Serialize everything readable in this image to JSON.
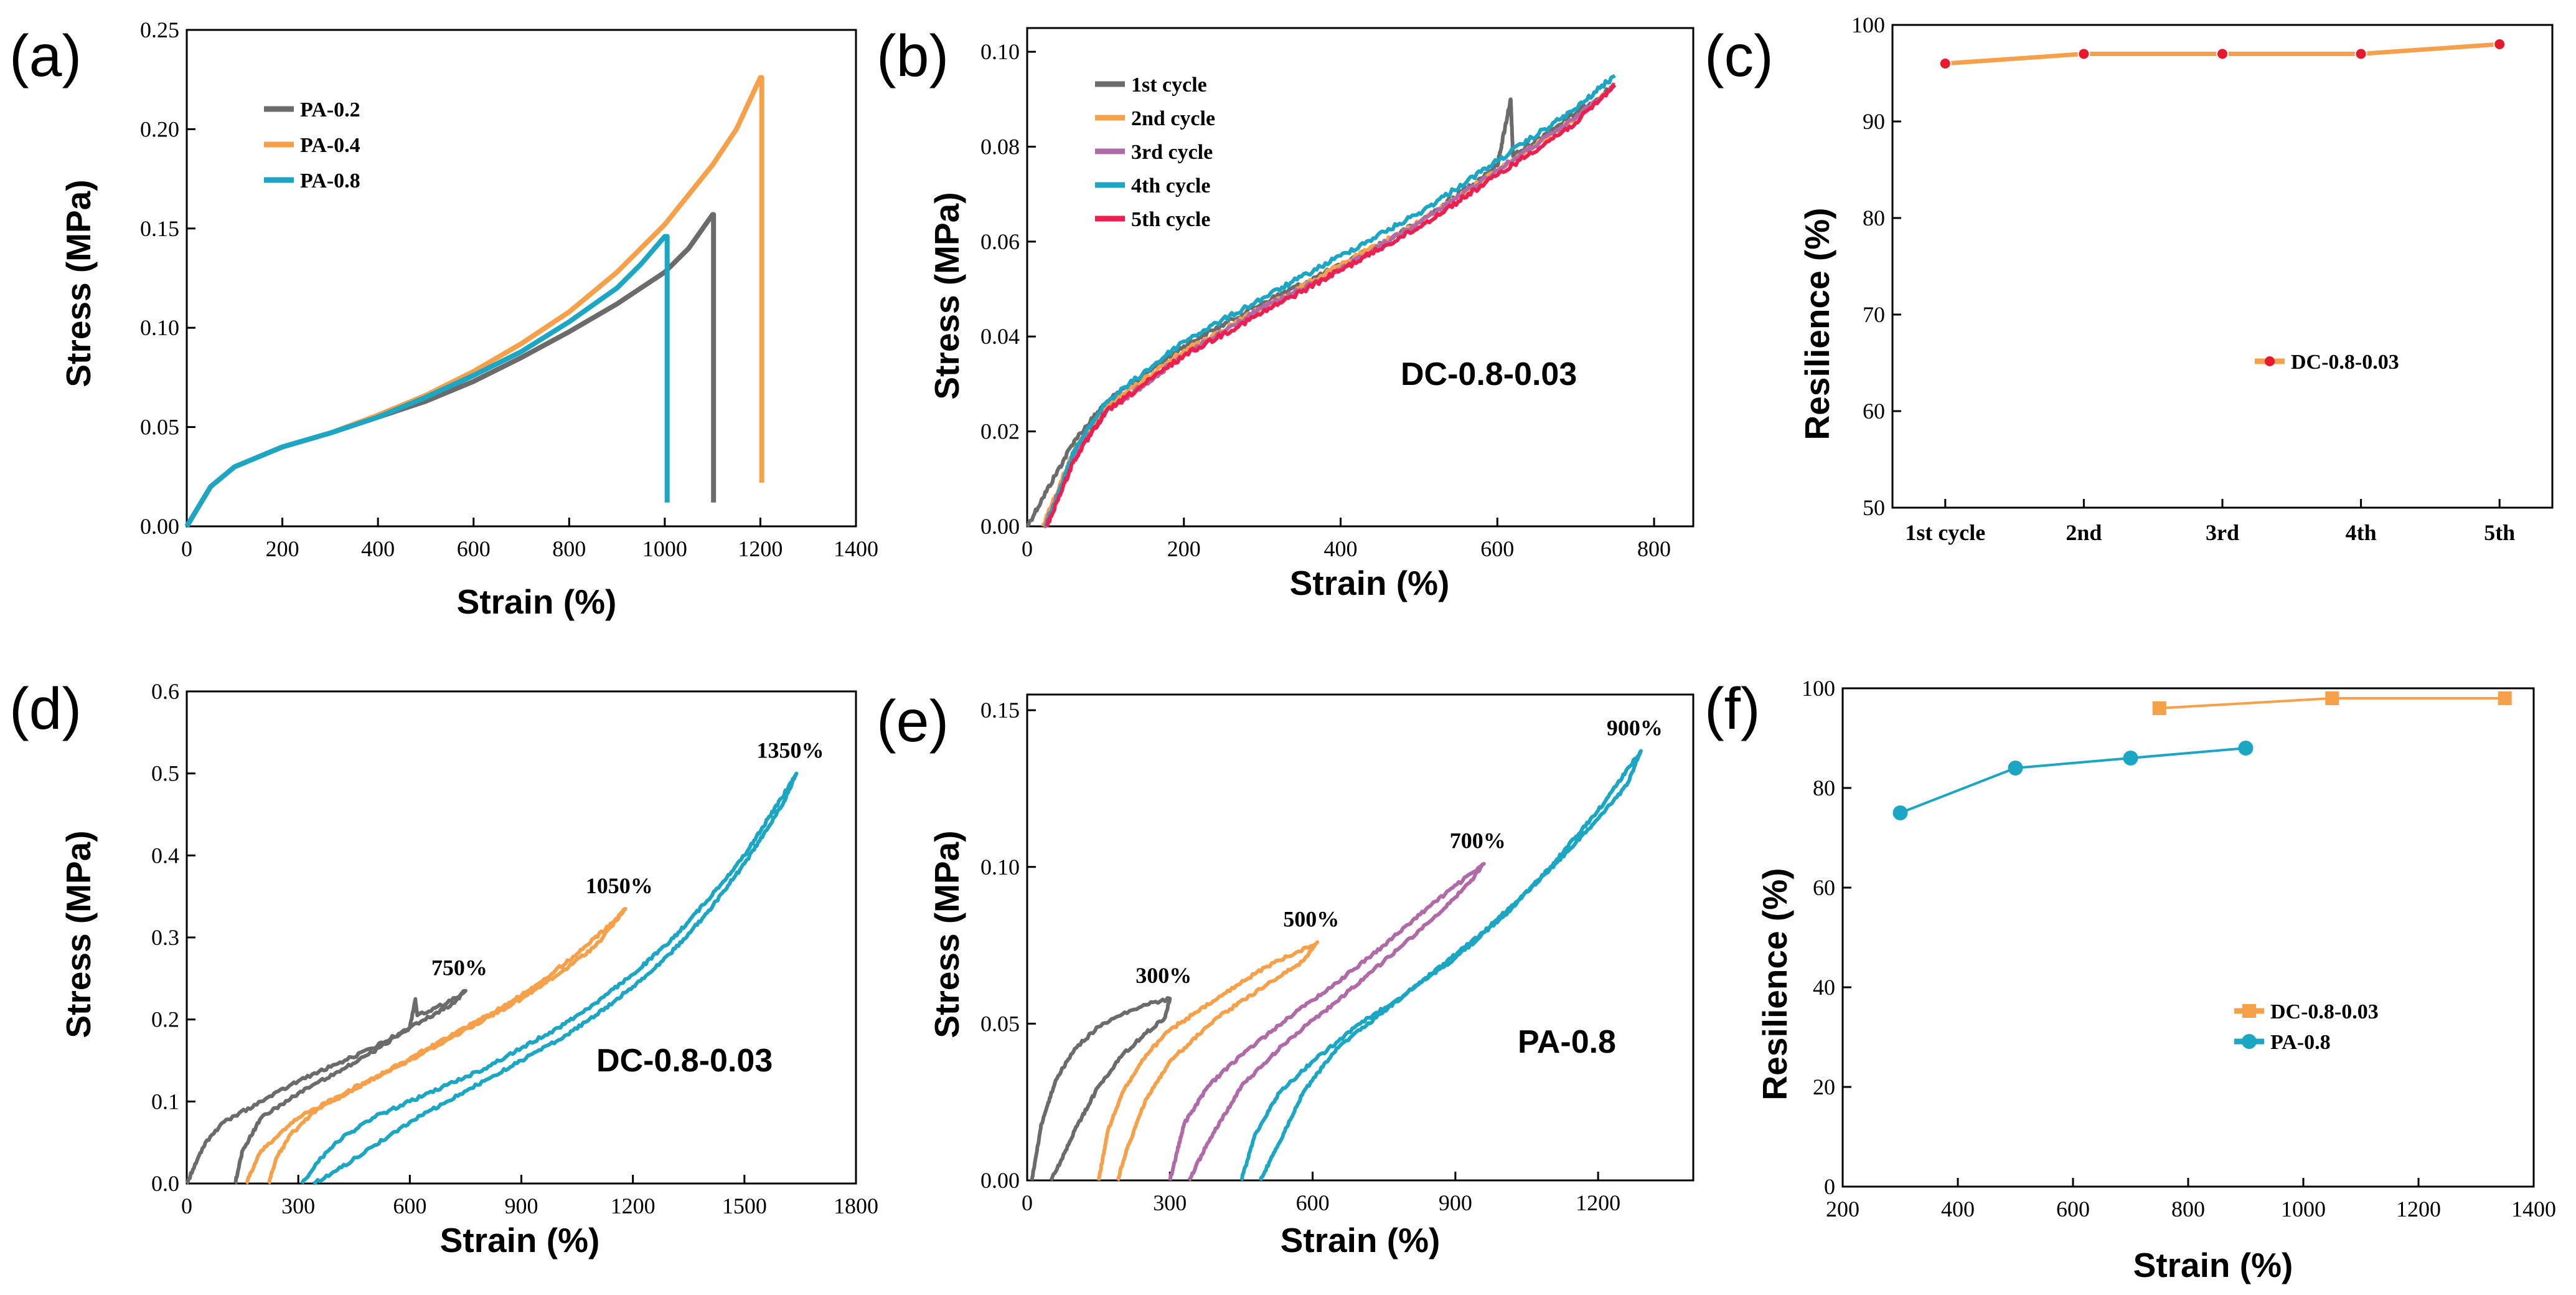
{
  "colors": {
    "gray": "#6b6b6b",
    "orange": "#f7a04a",
    "teal": "#1ba6c4",
    "purple": "#b06aa8",
    "red": "#ee1f4f",
    "marker_red": "#e8192c"
  },
  "chart_data": [
    {
      "id": "a",
      "panel_label": "(a)",
      "type": "line",
      "xlabel": "Strain (%)",
      "ylabel": "Stress (MPa)",
      "xlim": [
        0,
        1400
      ],
      "ylim": [
        0,
        0.25
      ],
      "xticks": [
        0,
        200,
        400,
        600,
        800,
        1000,
        1200,
        1400
      ],
      "yticks": [
        0.0,
        0.05,
        0.1,
        0.15,
        0.2,
        0.25
      ],
      "xtick_labels": [
        "0",
        "200",
        "400",
        "600",
        "800",
        "1000",
        "1200",
        "1400"
      ],
      "ytick_labels": [
        "0.00",
        "0.05",
        "0.10",
        "0.15",
        "0.20",
        "0.25"
      ],
      "legend_position": "top-left",
      "series": [
        {
          "name": "PA-0.2",
          "color": "gray",
          "x": [
            0,
            50,
            100,
            200,
            300,
            400,
            500,
            600,
            700,
            800,
            900,
            1000,
            1050,
            1100,
            1102,
            1102
          ],
          "y": [
            0,
            0.02,
            0.03,
            0.04,
            0.047,
            0.055,
            0.063,
            0.073,
            0.085,
            0.098,
            0.112,
            0.128,
            0.14,
            0.157,
            0.157,
            0.012
          ]
        },
        {
          "name": "PA-0.4",
          "color": "orange",
          "x": [
            0,
            50,
            100,
            200,
            300,
            400,
            500,
            600,
            700,
            800,
            900,
            1000,
            1100,
            1150,
            1200,
            1203,
            1203
          ],
          "y": [
            0,
            0.02,
            0.03,
            0.04,
            0.047,
            0.056,
            0.066,
            0.078,
            0.092,
            0.108,
            0.128,
            0.152,
            0.182,
            0.2,
            0.226,
            0.226,
            0.022
          ]
        },
        {
          "name": "PA-0.8",
          "color": "teal",
          "x": [
            0,
            50,
            100,
            200,
            300,
            400,
            500,
            600,
            700,
            800,
            900,
            950,
            1000,
            1005,
            1005
          ],
          "y": [
            0,
            0.02,
            0.03,
            0.04,
            0.047,
            0.055,
            0.065,
            0.076,
            0.088,
            0.103,
            0.12,
            0.132,
            0.146,
            0.146,
            0.012
          ]
        }
      ]
    },
    {
      "id": "b",
      "panel_label": "(b)",
      "type": "line",
      "xlabel": "Strain (%)",
      "ylabel": "Stress (MPa)",
      "xlim": [
        0,
        850
      ],
      "ylim": [
        0,
        0.105
      ],
      "xticks": [
        0,
        200,
        400,
        600,
        800
      ],
      "yticks": [
        0,
        0.02,
        0.04,
        0.06,
        0.08,
        0.1
      ],
      "xtick_labels": [
        "0",
        "200",
        "400",
        "600",
        "800"
      ],
      "ytick_labels": [
        "0.00",
        "0.02",
        "0.04",
        "0.06",
        "0.08",
        "0.10"
      ],
      "legend_position": "top-left",
      "annotation": "DC-0.8-0.03",
      "series": [
        {
          "name": "1st cycle",
          "color": "gray",
          "x": [
            0,
            20,
            60,
            100,
            200,
            300,
            400,
            500,
            600,
            617,
            620,
            700,
            750
          ],
          "y": [
            0,
            0.006,
            0.018,
            0.026,
            0.038,
            0.047,
            0.055,
            0.064,
            0.076,
            0.09,
            0.078,
            0.087,
            0.093
          ]
        },
        {
          "name": "2nd cycle",
          "color": "orange",
          "x": [
            20,
            60,
            100,
            200,
            300,
            400,
            500,
            600,
            700,
            750
          ],
          "y": [
            0,
            0.016,
            0.025,
            0.037,
            0.046,
            0.055,
            0.064,
            0.075,
            0.086,
            0.093
          ]
        },
        {
          "name": "3rd cycle",
          "color": "purple",
          "x": [
            22,
            60,
            100,
            200,
            300,
            400,
            500,
            600,
            700,
            750
          ],
          "y": [
            0,
            0.015,
            0.024,
            0.036,
            0.046,
            0.054,
            0.064,
            0.075,
            0.086,
            0.093
          ]
        },
        {
          "name": "4th cycle",
          "color": "teal",
          "x": [
            24,
            60,
            100,
            200,
            300,
            400,
            500,
            600,
            700,
            750
          ],
          "y": [
            0,
            0.016,
            0.026,
            0.039,
            0.048,
            0.057,
            0.066,
            0.077,
            0.088,
            0.095
          ]
        },
        {
          "name": "5th cycle",
          "color": "red",
          "x": [
            25,
            60,
            100,
            200,
            300,
            400,
            500,
            600,
            700,
            750
          ],
          "y": [
            0,
            0.014,
            0.024,
            0.036,
            0.045,
            0.054,
            0.063,
            0.074,
            0.085,
            0.093
          ]
        }
      ]
    },
    {
      "id": "c",
      "panel_label": "(c)",
      "type": "line",
      "xlabel": "",
      "ylabel": "Resilience (%)",
      "categories": [
        "1st cycle",
        "2nd",
        "3rd",
        "4th",
        "5th"
      ],
      "ylim": [
        50,
        100
      ],
      "yticks": [
        50,
        60,
        70,
        80,
        90,
        100
      ],
      "ytick_labels": [
        "50",
        "60",
        "70",
        "80",
        "90",
        "100"
      ],
      "legend_position": "center-right",
      "series": [
        {
          "name": "DC-0.8-0.03",
          "color": "orange",
          "marker_color": "marker_red",
          "values": [
            96,
            97,
            97,
            97,
            98
          ]
        }
      ]
    },
    {
      "id": "d",
      "panel_label": "(d)",
      "type": "line",
      "xlabel": "Strain (%)",
      "ylabel": "Stress (MPa)",
      "xlim": [
        0,
        1800
      ],
      "ylim": [
        0,
        0.6
      ],
      "xticks": [
        0,
        300,
        600,
        900,
        1200,
        1500,
        1800
      ],
      "yticks": [
        0,
        0.1,
        0.2,
        0.3,
        0.4,
        0.5,
        0.6
      ],
      "xtick_labels": [
        "0",
        "300",
        "600",
        "900",
        "1200",
        "1500",
        "1800"
      ],
      "ytick_labels": [
        "0.0",
        "0.1",
        "0.2",
        "0.3",
        "0.4",
        "0.5",
        "0.6"
      ],
      "annotation": "DC-0.8-0.03",
      "series": [
        {
          "name": "750%",
          "color": "gray",
          "label_at": [
            750,
            0.235
          ],
          "x": [
            0,
            50,
            100,
            200,
            300,
            400,
            500,
            600,
            615,
            620,
            700,
            750,
            720,
            600,
            500,
            400,
            300,
            200,
            150,
            130
          ],
          "y": [
            0,
            0.05,
            0.075,
            0.1,
            0.125,
            0.145,
            0.165,
            0.19,
            0.225,
            0.205,
            0.22,
            0.235,
            0.22,
            0.19,
            0.16,
            0.135,
            0.11,
            0.08,
            0.04,
            0
          ]
        },
        {
          "name": "1050%",
          "color": "orange",
          "label_at": [
            1180,
            0.335
          ],
          "x": [
            160,
            200,
            300,
            400,
            500,
            600,
            700,
            800,
            900,
            1000,
            1100,
            1180,
            1150,
            1050,
            950,
            850,
            750,
            650,
            550,
            450,
            350,
            280,
            240,
            220
          ],
          "y": [
            0,
            0.04,
            0.08,
            0.105,
            0.128,
            0.15,
            0.175,
            0.2,
            0.225,
            0.255,
            0.29,
            0.335,
            0.32,
            0.28,
            0.245,
            0.215,
            0.19,
            0.165,
            0.14,
            0.115,
            0.09,
            0.06,
            0.03,
            0
          ]
        },
        {
          "name": "1350%",
          "color": "teal",
          "label_at": [
            1640,
            0.5
          ],
          "x": [
            310,
            350,
            400,
            500,
            600,
            700,
            800,
            900,
            1000,
            1100,
            1200,
            1300,
            1400,
            1500,
            1600,
            1640,
            1600,
            1500,
            1400,
            1300,
            1200,
            1100,
            1000,
            900,
            800,
            700,
            600,
            500,
            400,
            340
          ],
          "y": [
            0,
            0.025,
            0.05,
            0.08,
            0.1,
            0.12,
            0.14,
            0.165,
            0.19,
            0.22,
            0.255,
            0.295,
            0.345,
            0.4,
            0.47,
            0.5,
            0.46,
            0.39,
            0.33,
            0.28,
            0.24,
            0.205,
            0.175,
            0.15,
            0.125,
            0.1,
            0.075,
            0.045,
            0.015,
            0
          ]
        }
      ]
    },
    {
      "id": "e",
      "panel_label": "(e)",
      "type": "line",
      "xlabel": "Strain (%)",
      "ylabel": "Stress (MPa)",
      "xlim": [
        0,
        1400
      ],
      "ylim": [
        0,
        0.155
      ],
      "xticks": [
        0,
        300,
        600,
        900,
        1200
      ],
      "yticks": [
        0,
        0.05,
        0.1,
        0.15
      ],
      "xtick_labels": [
        "0",
        "300",
        "600",
        "900",
        "1200"
      ],
      "ytick_labels": [
        "0.00",
        "0.05",
        "0.10",
        "0.15"
      ],
      "annotation": "PA-0.8",
      "series": [
        {
          "name": "300%",
          "color": "gray",
          "label_at": [
            300,
            0.058
          ],
          "x": [
            10,
            30,
            60,
            100,
            150,
            200,
            250,
            300,
            290,
            250,
            200,
            150,
            100,
            70,
            50
          ],
          "y": [
            0,
            0.018,
            0.032,
            0.042,
            0.049,
            0.053,
            0.056,
            0.058,
            0.052,
            0.047,
            0.04,
            0.03,
            0.016,
            0.006,
            0
          ]
        },
        {
          "name": "500%",
          "color": "orange",
          "label_at": [
            610,
            0.076
          ],
          "x": [
            150,
            170,
            200,
            250,
            300,
            400,
            500,
            610,
            580,
            500,
            400,
            300,
            250,
            210,
            190
          ],
          "y": [
            0,
            0.016,
            0.028,
            0.04,
            0.048,
            0.058,
            0.068,
            0.076,
            0.07,
            0.062,
            0.052,
            0.038,
            0.026,
            0.01,
            0
          ]
        },
        {
          "name": "700%",
          "color": "purple",
          "label_at": [
            960,
            0.101
          ],
          "x": [
            300,
            330,
            380,
            450,
            550,
            650,
            750,
            850,
            960,
            930,
            850,
            750,
            650,
            550,
            450,
            380,
            340
          ],
          "y": [
            0,
            0.018,
            0.03,
            0.04,
            0.052,
            0.063,
            0.075,
            0.088,
            0.101,
            0.095,
            0.083,
            0.07,
            0.057,
            0.045,
            0.03,
            0.012,
            0
          ]
        },
        {
          "name": "900%",
          "color": "teal",
          "label_at": [
            1290,
            0.137
          ],
          "x": [
            450,
            480,
            530,
            600,
            700,
            800,
            900,
            1000,
            1100,
            1200,
            1290,
            1260,
            1150,
            1050,
            950,
            850,
            750,
            650,
            580,
            530,
            490
          ],
          "y": [
            0,
            0.015,
            0.028,
            0.038,
            0.05,
            0.06,
            0.071,
            0.084,
            0.1,
            0.118,
            0.137,
            0.126,
            0.107,
            0.092,
            0.078,
            0.066,
            0.054,
            0.042,
            0.028,
            0.012,
            0
          ]
        }
      ]
    },
    {
      "id": "f",
      "panel_label": "(f)",
      "type": "line",
      "xlabel": "Strain (%)",
      "ylabel": "Resilience (%)",
      "xlim": [
        200,
        1400
      ],
      "ylim": [
        0,
        100
      ],
      "xticks": [
        200,
        400,
        600,
        800,
        1000,
        1200,
        1400
      ],
      "yticks": [
        0,
        20,
        40,
        60,
        80,
        100
      ],
      "xtick_labels": [
        "200",
        "400",
        "600",
        "800",
        "1000",
        "1200",
        "1400"
      ],
      "ytick_labels": [
        "0",
        "20",
        "40",
        "60",
        "80",
        "100"
      ],
      "legend_position": "center-right",
      "series": [
        {
          "name": "DC-0.8-0.03",
          "color": "orange",
          "marker": "square",
          "x": [
            750,
            1050,
            1350
          ],
          "y": [
            96,
            98,
            98
          ]
        },
        {
          "name": "PA-0.8",
          "color": "teal",
          "marker": "circle",
          "x": [
            300,
            500,
            700,
            900
          ],
          "y": [
            75,
            84,
            86,
            88
          ]
        }
      ]
    }
  ]
}
